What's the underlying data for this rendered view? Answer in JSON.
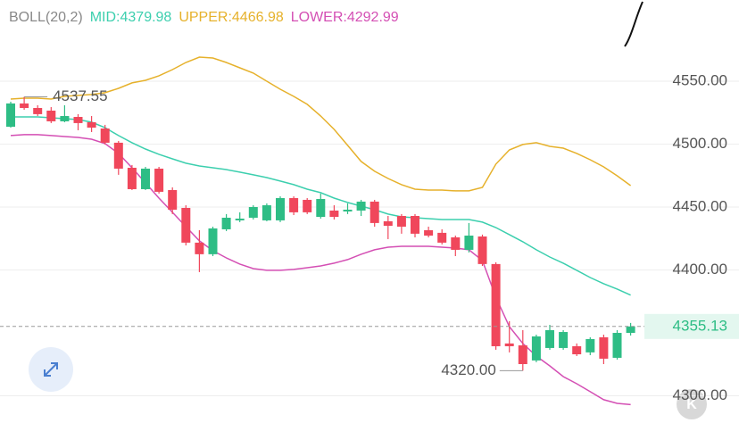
{
  "chart_data": {
    "type": "candlestick",
    "indicator": "BOLL(20,2)",
    "open": [
      4513.8,
      4532.3,
      4528.7,
      4526.6,
      4518.1,
      4521.6,
      4517.4,
      4512.4,
      4501.1,
      4481.2,
      4464.2,
      4480.5,
      4463.5,
      4449.3,
      4421.7,
      4412.5,
      4432.3,
      4439.4,
      4441.5,
      4439.4,
      4439.4,
      4457.1,
      4455.7,
      4442.2,
      4447.2,
      4446.5,
      4447.2,
      4454.3,
      4438.7,
      4442.9,
      4442.9,
      4431.6,
      4429.5,
      4425.9,
      4416.0,
      4426.6,
      4404.7,
      4341.6,
      4340.1,
      4328.1,
      4338.0,
      4338.0,
      4339.4,
      4334.5,
      4346.5,
      4330.2,
      4350.0
    ],
    "high": [
      4533.7,
      4537.55,
      4530.9,
      4529.4,
      4530.9,
      4523.8,
      4522.3,
      4515.3,
      4502.5,
      4483.4,
      4481.9,
      4481.9,
      4465.6,
      4451.4,
      4431.6,
      4434.4,
      4444.4,
      4445.8,
      4451.4,
      4452.9,
      4458.5,
      4458.5,
      4457.1,
      4460.7,
      4451.4,
      4452.9,
      4455.7,
      4455.7,
      4442.9,
      4444.4,
      4444.4,
      4434.4,
      4432.3,
      4427.3,
      4437.3,
      4428.1,
      4406.1,
      4359.3,
      4352.2,
      4348.6,
      4356.4,
      4352.2,
      4341.6,
      4346.5,
      4348.6,
      4352.2,
      4357.9
    ],
    "low": [
      4513.1,
      4527.3,
      4522.3,
      4516.7,
      4517.4,
      4511.0,
      4509.6,
      4499.7,
      4475.6,
      4463.5,
      4463.5,
      4460.7,
      4444.4,
      4419.5,
      4398.3,
      4411.0,
      4430.9,
      4438.0,
      4440.1,
      4438.7,
      4438.0,
      4443.6,
      4444.4,
      4440.8,
      4440.1,
      4444.4,
      4442.9,
      4434.4,
      4424.5,
      4428.8,
      4425.9,
      4425.9,
      4420.3,
      4411.0,
      4413.9,
      4403.2,
      4336.6,
      4334.5,
      4320.0,
      4326.7,
      4336.6,
      4336.6,
      4331.6,
      4332.3,
      4325.2,
      4328.8,
      4347.9
    ],
    "close": [
      4532.3,
      4528.7,
      4523.8,
      4518.1,
      4522.3,
      4516.7,
      4513.1,
      4501.1,
      4480.5,
      4464.2,
      4480.5,
      4462.1,
      4447.9,
      4421.7,
      4412.5,
      4433.0,
      4441.5,
      4440.8,
      4450.0,
      4451.4,
      4457.1,
      4445.8,
      4445.8,
      4456.4,
      4442.2,
      4447.9,
      4454.3,
      4437.3,
      4435.1,
      4434.4,
      4428.8,
      4427.3,
      4421.7,
      4416.0,
      4427.3,
      4404.7,
      4339.4,
      4339.4,
      4325.2,
      4347.2,
      4352.2,
      4350.7,
      4333.0,
      4345.1,
      4329.5,
      4350.0,
      4355.13
    ],
    "up_color": "#2ebd85",
    "down_color": "#f0475b",
    "series": [
      {
        "name": "MID:4379.98",
        "color": "#3ccfae",
        "values": [
          4521.6,
          4521.6,
          4521.6,
          4520.9,
          4520.2,
          4519.5,
          4517.4,
          4513.1,
          4506.8,
          4501.1,
          4496.1,
          4491.9,
          4488.3,
          4484.8,
          4482.6,
          4481.2,
          4479.8,
          4477.7,
          4475.6,
          4473.4,
          4470.6,
          4467.8,
          4464.2,
          4461.4,
          4457.1,
          4453.6,
          4450.7,
          4447.9,
          4444.4,
          4442.2,
          4441.5,
          4440.8,
          4440.1,
          4440.1,
          4440.1,
          4438.0,
          4433.7,
          4428.1,
          4422.4,
          4416.0,
          4410.3,
          4405.4,
          4399.7,
          4394.0,
          4389.1,
          4384.8,
          4379.98
        ]
      },
      {
        "name": "UPPER:4466.98",
        "color": "#e6b12b",
        "values": [
          4535.8,
          4536.5,
          4536.5,
          4535.8,
          4537.9,
          4538.7,
          4539.4,
          4540.8,
          4544.3,
          4548.6,
          4550.7,
          4554.3,
          4559.2,
          4564.9,
          4569.1,
          4568.4,
          4564.9,
          4560.6,
          4556.4,
          4550.0,
          4543.6,
          4537.9,
          4531.6,
          4522.3,
          4511.7,
          4499.0,
          4486.2,
          4478.4,
          4472.7,
          4467.8,
          4464.2,
          4463.5,
          4463.5,
          4462.8,
          4462.8,
          4465.6,
          4484.1,
          4495.4,
          4499.7,
          4501.1,
          4498.2,
          4496.8,
          4492.6,
          4487.6,
          4481.9,
          4474.8,
          4466.98
        ]
      },
      {
        "name": "LOWER:4292.99",
        "color": "#d44fb4",
        "values": [
          4506.8,
          4507.5,
          4507.5,
          4506.8,
          4506.0,
          4505.3,
          4503.9,
          4500.4,
          4492.6,
          4481.2,
          4469.2,
          4457.1,
          4445.8,
          4434.4,
          4423.1,
          4415.3,
          4409.6,
          4404.7,
          4401.1,
          4399.7,
          4399.7,
          4400.4,
          4401.8,
          4403.2,
          4405.4,
          4408.2,
          4412.5,
          4416.0,
          4418.1,
          4418.8,
          4418.8,
          4418.8,
          4418.1,
          4417.4,
          4416.0,
          4407.5,
          4378.4,
          4355.0,
          4341.6,
          4331.6,
          4323.8,
          4315.3,
          4309.6,
          4303.3,
          4296.9,
          4294.0,
          4292.99
        ]
      }
    ],
    "high_label": "4537.55",
    "low_label": "4320.00",
    "last_price_label": "4355.13",
    "ylim": [
      4278.4,
      4614.5
    ],
    "yticks": [
      {
        "value": 4300,
        "label": "4300.00"
      },
      {
        "value": 4400,
        "label": "4400.00"
      },
      {
        "value": 4450,
        "label": "4450.00"
      },
      {
        "value": 4500,
        "label": "4500.00"
      },
      {
        "value": 4550,
        "label": "4550.00"
      }
    ],
    "grid": true
  }
}
